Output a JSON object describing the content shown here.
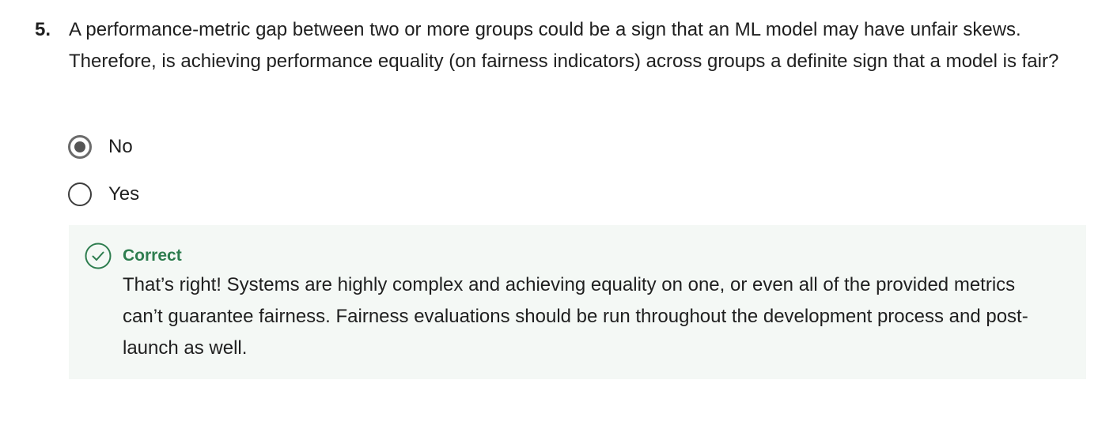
{
  "question": {
    "number": "5.",
    "text": "A performance-metric gap between two or more groups could be a sign that an ML model may have unfair skews. Therefore, is achieving performance equality (on fairness indicators) across groups a definite sign that a model is fair?"
  },
  "options": [
    {
      "label": "No",
      "selected": true
    },
    {
      "label": "Yes",
      "selected": false
    }
  ],
  "feedback": {
    "icon": "check-circle-icon",
    "status": "Correct",
    "status_color": "#2e7d4f",
    "text": "That’s right! Systems are highly complex and achieving equality on one, or even all of the provided metrics can’t guarantee fairness. Fairness evaluations should be run throughout the development process and post-launch as well."
  }
}
